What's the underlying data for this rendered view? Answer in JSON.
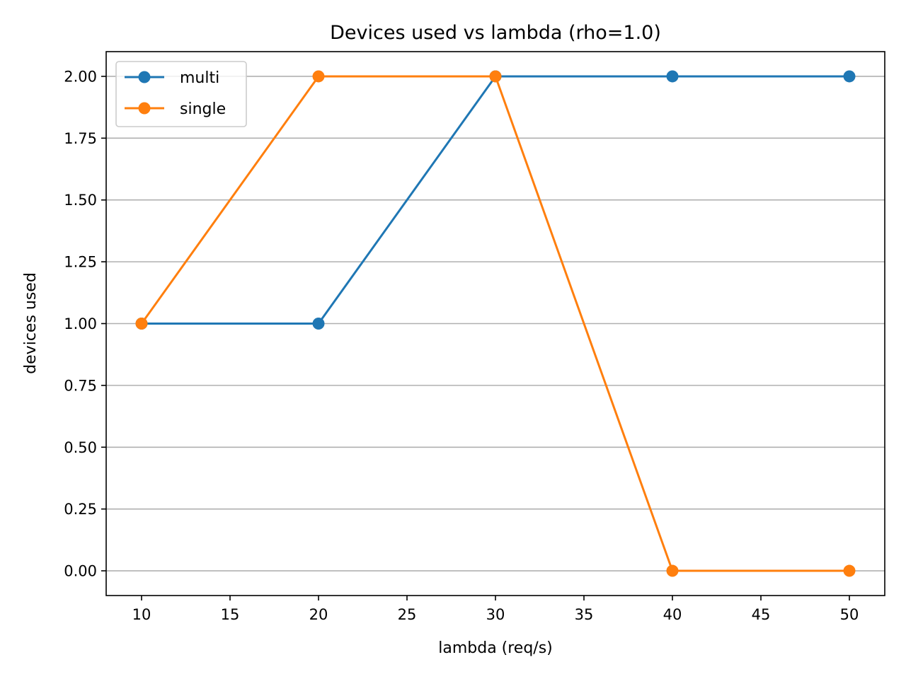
{
  "chart_data": {
    "type": "line",
    "title": "Devices used vs lambda (rho=1.0)",
    "xlabel": "lambda (req/s)",
    "ylabel": "devices used",
    "xlim": [
      8,
      52
    ],
    "ylim": [
      -0.1,
      2.1
    ],
    "xticks": [
      10,
      15,
      20,
      25,
      30,
      35,
      40,
      45,
      50
    ],
    "yticks": [
      0.0,
      0.25,
      0.5,
      0.75,
      1.0,
      1.25,
      1.5,
      1.75,
      2.0
    ],
    "xtick_labels": [
      "10",
      "15",
      "20",
      "25",
      "30",
      "35",
      "40",
      "45",
      "50"
    ],
    "ytick_labels": [
      "0.00",
      "0.25",
      "0.50",
      "0.75",
      "1.00",
      "1.25",
      "1.50",
      "1.75",
      "2.00"
    ],
    "grid": "y-major",
    "legend_position": "top-left",
    "x": [
      10,
      20,
      30,
      40,
      50
    ],
    "series": [
      {
        "name": "multi",
        "color": "#1f77b4",
        "values": [
          1,
          1,
          2,
          2,
          2
        ]
      },
      {
        "name": "single",
        "color": "#ff7f0e",
        "values": [
          1,
          2,
          2,
          0,
          0
        ]
      }
    ]
  }
}
